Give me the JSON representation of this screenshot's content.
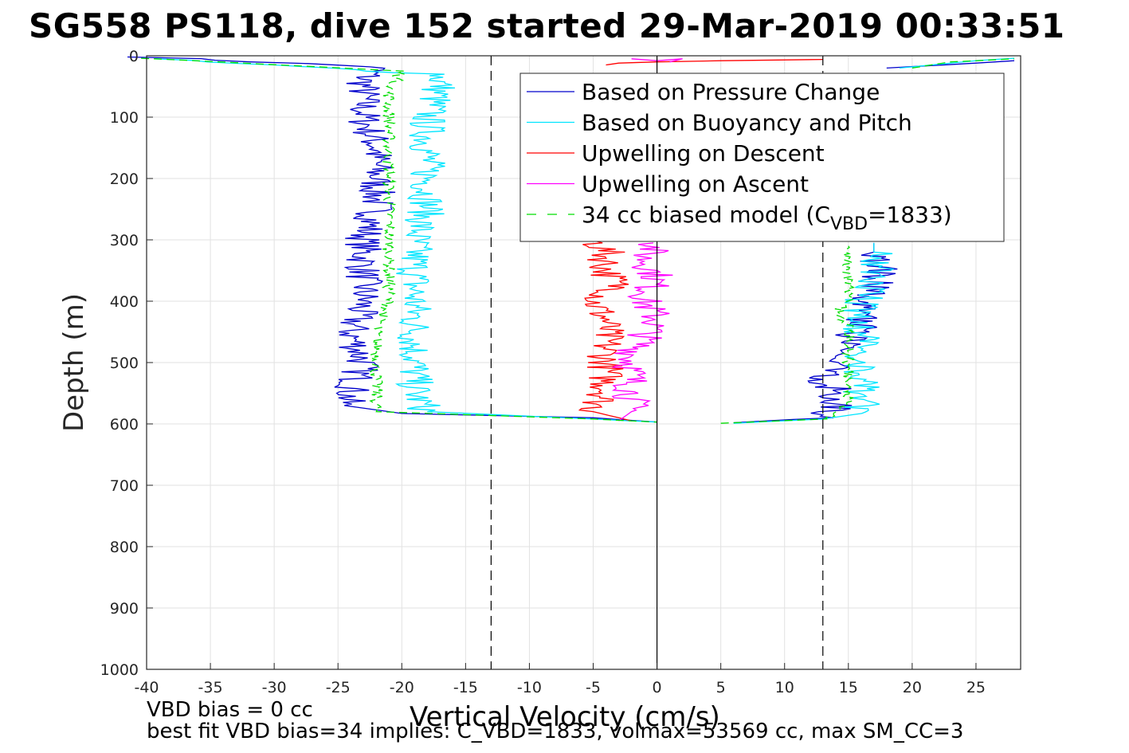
{
  "chart_data": {
    "type": "line",
    "title": "SG558 PS118, dive 152 started 29-Mar-2019 00:33:51",
    "xlabel": "Vertical Velocity (cm/s)",
    "ylabel": "Depth (m)",
    "xlim": [
      -40,
      28.5
    ],
    "ylim": [
      0,
      1000
    ],
    "y_reversed": true,
    "xticks": [
      "-40",
      "-35",
      "-30",
      "-25",
      "-20",
      "-15",
      "-10",
      "-5",
      "0",
      "5",
      "10",
      "15",
      "20",
      "25"
    ],
    "yticks": [
      "0",
      "100",
      "200",
      "300",
      "400",
      "500",
      "600",
      "700",
      "800",
      "900",
      "1000"
    ],
    "grid": true,
    "legend_position": "top-right",
    "reference_lines": {
      "dashed_vertical_x": [
        -13,
        13
      ],
      "solid_vertical_x": 0
    },
    "series": [
      {
        "name": "Based on Pressure Change",
        "color": "#0000cc",
        "descent": [
          [
            -40,
            2
          ],
          [
            -22,
            18
          ],
          [
            -23,
            40
          ],
          [
            -23,
            100
          ],
          [
            -22,
            150
          ],
          [
            -22,
            200
          ],
          [
            -22,
            250
          ],
          [
            -23,
            300
          ],
          [
            -23,
            350
          ],
          [
            -23,
            400
          ],
          [
            -24,
            450
          ],
          [
            -23,
            500
          ],
          [
            -24,
            550
          ],
          [
            -24.5,
            570
          ],
          [
            -20,
            583
          ],
          [
            -5,
            590
          ],
          [
            0,
            597
          ]
        ],
        "ascent": [
          [
            6,
            598
          ],
          [
            13,
            590
          ],
          [
            14,
            570
          ],
          [
            14,
            550
          ],
          [
            13,
            520
          ],
          [
            14,
            500
          ],
          [
            14,
            480
          ],
          [
            15,
            460
          ],
          [
            16,
            440
          ],
          [
            16,
            420
          ],
          [
            16,
            400
          ],
          [
            17,
            380
          ],
          [
            17.5,
            360
          ],
          [
            17.5,
            340
          ],
          [
            17,
            320
          ],
          [
            17,
            305
          ]
        ],
        "surface": [
          [
            18,
            20
          ],
          [
            25,
            12
          ],
          [
            28,
            8
          ]
        ]
      },
      {
        "name": "Based on Buoyancy and Pitch",
        "color": "#00e5ff",
        "descent": [
          [
            -40,
            5
          ],
          [
            -17,
            30
          ],
          [
            -17,
            50
          ],
          [
            -18,
            100
          ],
          [
            -18,
            150
          ],
          [
            -18,
            200
          ],
          [
            -18,
            250
          ],
          [
            -19,
            300
          ],
          [
            -19,
            350
          ],
          [
            -19,
            400
          ],
          [
            -19,
            450
          ],
          [
            -19,
            500
          ],
          [
            -19,
            550
          ],
          [
            -18,
            580
          ],
          [
            -5,
            592
          ],
          [
            0,
            597
          ]
        ],
        "ascent": [
          [
            6,
            599
          ],
          [
            13,
            592
          ],
          [
            16,
            583
          ],
          [
            16,
            550
          ],
          [
            16,
            520
          ],
          [
            16,
            500
          ],
          [
            16,
            480
          ],
          [
            16,
            460
          ],
          [
            16,
            440
          ],
          [
            16,
            420
          ],
          [
            16,
            400
          ],
          [
            17,
            380
          ],
          [
            17,
            360
          ],
          [
            17,
            340
          ],
          [
            17,
            320
          ],
          [
            17,
            305
          ]
        ],
        "surface": [
          [
            19,
            20
          ],
          [
            25,
            8
          ],
          [
            28,
            4
          ]
        ]
      },
      {
        "name": "Upwelling on Descent",
        "color": "#ff0000",
        "surface": [
          [
            -4,
            15
          ],
          [
            -3,
            12
          ],
          [
            0,
            10
          ],
          [
            5,
            8
          ],
          [
            13,
            6
          ]
        ],
        "descent": [
          [
            -5,
            300
          ],
          [
            -4,
            320
          ],
          [
            -4,
            350
          ],
          [
            -3,
            380
          ],
          [
            -5,
            400
          ],
          [
            -4,
            430
          ],
          [
            -4,
            460
          ],
          [
            -4,
            490
          ],
          [
            -4,
            520
          ],
          [
            -4,
            550
          ],
          [
            -5,
            580
          ],
          [
            -2,
            595
          ]
        ]
      },
      {
        "name": "Upwelling on Ascent",
        "color": "#ff00ff",
        "surface": [
          [
            -2,
            5
          ],
          [
            0,
            8
          ],
          [
            2,
            5
          ],
          [
            1,
            10
          ]
        ],
        "ascent": [
          [
            0,
            305
          ],
          [
            -1,
            330
          ],
          [
            0,
            360
          ],
          [
            -1,
            400
          ],
          [
            0,
            430
          ],
          [
            -1,
            460
          ],
          [
            -2,
            490
          ],
          [
            -2,
            520
          ],
          [
            -2,
            550
          ],
          [
            -2,
            580
          ],
          [
            -3,
            595
          ]
        ]
      },
      {
        "name": "34 cc biased model (C_VBD=1833)",
        "color": "#00dd00",
        "dashed": true,
        "descent": [
          [
            -40,
            4
          ],
          [
            -20,
            25
          ],
          [
            -21,
            60
          ],
          [
            -21,
            120
          ],
          [
            -21,
            200
          ],
          [
            -21,
            260
          ],
          [
            -21,
            300
          ],
          [
            -21,
            350
          ],
          [
            -21,
            400
          ],
          [
            -22,
            450
          ],
          [
            -22,
            500
          ],
          [
            -22,
            550
          ],
          [
            -22,
            580
          ],
          [
            -5,
            592
          ],
          [
            0,
            597
          ]
        ],
        "ascent": [
          [
            5,
            599
          ],
          [
            13,
            592
          ],
          [
            15,
            570
          ],
          [
            15,
            530
          ],
          [
            15,
            500
          ],
          [
            15,
            470
          ],
          [
            15,
            440
          ],
          [
            14,
            420
          ],
          [
            15,
            400
          ],
          [
            15,
            370
          ],
          [
            15,
            340
          ],
          [
            15,
            310
          ]
        ],
        "surface": [
          [
            20,
            20
          ],
          [
            23,
            10
          ],
          [
            28,
            5
          ]
        ]
      }
    ],
    "legend_entries": [
      "Based on Pressure Change",
      "Based on Buoyancy and Pitch",
      "Upwelling on Descent",
      "Upwelling on Ascent"
    ],
    "legend_model": {
      "prefix": "34 cc biased model (C",
      "sub": "VBD",
      "suffix": "=1833)"
    }
  },
  "footer": {
    "line1": "VBD bias = 0 cc",
    "line2": "best fit VBD bias=34 implies: C_VBD=1833, volmax=53569 cc, max SM_CC=3"
  }
}
